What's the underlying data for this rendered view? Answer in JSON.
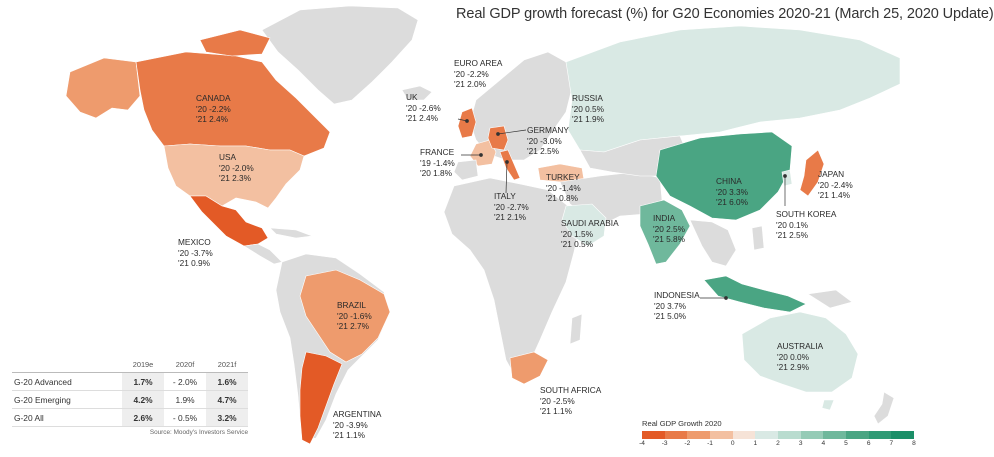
{
  "title": "Real GDP growth forecast (%) for G20 Economies 2020-21 (March 25, 2020 Update)",
  "colors": {
    "land_default": "#dcdcdc",
    "ocean": "#ffffff",
    "scale": [
      "#e35a26",
      "#e87a48",
      "#ee9b6d",
      "#f3c0a1",
      "#f6e3d7",
      "#d9e9e4",
      "#b9dccf",
      "#95cbb6",
      "#6fb89c",
      "#4aa583",
      "#2f9a75",
      "#1b8f68"
    ]
  },
  "labels": {
    "canada": {
      "name": "CANADA",
      "y20": "'20  -2.2%",
      "y21": "'21   2.4%"
    },
    "usa": {
      "name": "USA",
      "y20": "'20  -2.0%",
      "y21": "'21   2.3%"
    },
    "mexico": {
      "name": "MEXICO",
      "y20": "'20  -3.7%",
      "y21": "'21   0.9%"
    },
    "brazil": {
      "name": "BRAZIL",
      "y20": "'20  -1.6%",
      "y21": "'21   2.7%"
    },
    "argentina": {
      "name": "ARGENTINA",
      "y20": "'20  -3.9%",
      "y21": "'21   1.1%"
    },
    "uk": {
      "name": "UK",
      "y20": "'20  -2.6%",
      "y21": "'21   2.4%"
    },
    "euro_area": {
      "name": "EURO AREA",
      "y20": "'20  -2.2%",
      "y21": "'21   2.0%"
    },
    "germany": {
      "name": "GERMANY",
      "y20": "'20  -3.0%",
      "y21": "'21   2.5%"
    },
    "france": {
      "name": "FRANCE",
      "y20": "'19  -1.4%",
      "y21": "'20   1.8%"
    },
    "italy": {
      "name": "ITALY",
      "y20": "'20  -2.7%",
      "y21": "'21   2.1%"
    },
    "turkey": {
      "name": "TURKEY",
      "y20": "'20  -1.4%",
      "y21": "'21   0.8%"
    },
    "russia": {
      "name": "RUSSIA",
      "y20": "'20  0.5%",
      "y21": "'21  1.9%"
    },
    "saudi_arabia": {
      "name": "SAUDI ARABIA",
      "y20": "'20  1.5%",
      "y21": "'21  0.5%"
    },
    "south_africa": {
      "name": "SOUTH AFRICA",
      "y20": "'20  -2.5%",
      "y21": "'21   1.1%"
    },
    "india": {
      "name": "INDIA",
      "y20": "'20  2.5%",
      "y21": "'21  5.8%"
    },
    "china": {
      "name": "CHINA",
      "y20": "'20  3.3%",
      "y21": "'21  6.0%"
    },
    "japan": {
      "name": "JAPAN",
      "y20": "'20  -2.4%",
      "y21": "'21   1.4%"
    },
    "south_korea": {
      "name": "SOUTH KOREA",
      "y20": "'20   0.1%",
      "y21": "'21   2.5%"
    },
    "indonesia": {
      "name": "INDONESIA",
      "y20": "'20  3.7%",
      "y21": "'21  5.0%"
    },
    "australia": {
      "name": "AUSTRALIA",
      "y20": "'20  0.0%",
      "y21": "'21  2.9%"
    }
  },
  "table": {
    "headers": [
      "",
      "2019e",
      "2020f",
      "2021f"
    ],
    "rows": [
      {
        "label": "G-20 Advanced",
        "v2019": "1.7%",
        "v2020": "- 2.0%",
        "v2021": "1.6%"
      },
      {
        "label": "G-20 Emerging",
        "v2019": "4.2%",
        "v2020": "1.9%",
        "v2021": "4.7%"
      },
      {
        "label": "G-20 All",
        "v2019": "2.6%",
        "v2020": "- 0.5%",
        "v2021": "3.2%"
      }
    ],
    "source": "Source: Moody's Investors Service"
  },
  "legend": {
    "title": "Real GDP Growth 2020",
    "ticks": [
      "-4",
      "-3",
      "-2",
      "-1",
      "0",
      "1",
      "2",
      "3",
      "4",
      "5",
      "6",
      "7",
      "8"
    ]
  }
}
